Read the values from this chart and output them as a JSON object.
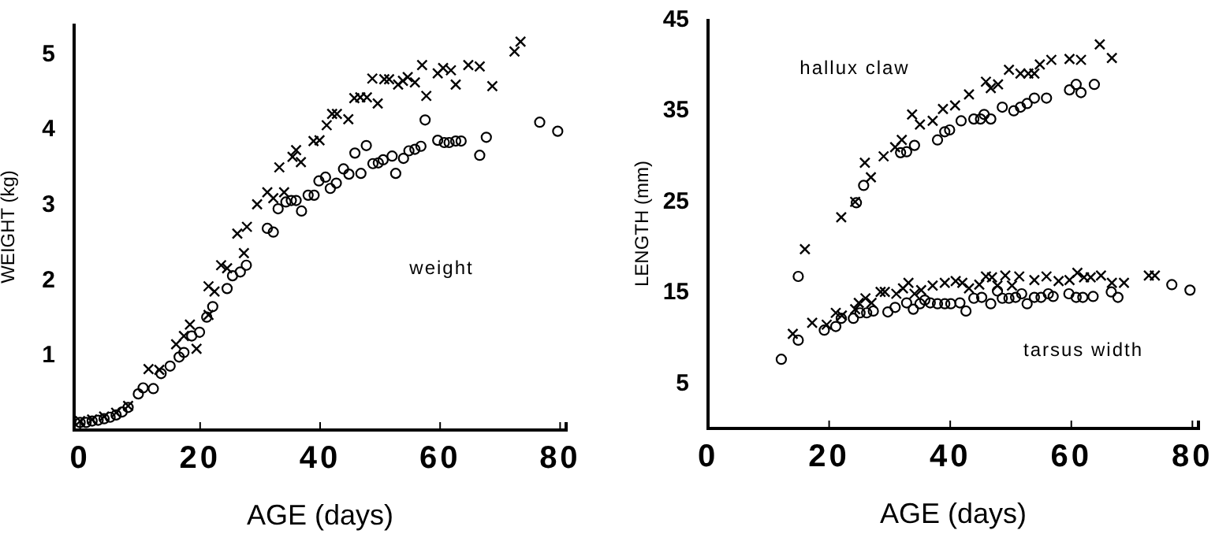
{
  "chart_data": [
    {
      "type": "scatter",
      "xlabel": "AGE (days)",
      "ylabel": "WEIGHT (kg)",
      "xlim": [
        -1,
        81
      ],
      "ylim": [
        0,
        5.4
      ],
      "xticks": [
        0,
        20,
        40,
        60,
        80
      ],
      "yticks": [
        1,
        2,
        3,
        4,
        5
      ],
      "annotations": [
        "weight"
      ],
      "series": [
        {
          "marker": "cross",
          "color": "#000000",
          "x": [
            0,
            2,
            4,
            6,
            8,
            11.4,
            13.2,
            16.0,
            17.3,
            18.3,
            19.4,
            21.4,
            21.4,
            22.4,
            23.5,
            24.5,
            26.2,
            27.3,
            27.8,
            29.5,
            31.2,
            32.2,
            34.0,
            33.2,
            35.4,
            36.0,
            36.8,
            38.9,
            39.9,
            41.1,
            42.0,
            42.8,
            44.7,
            45.7,
            46.7,
            47.8,
            49.6,
            48.7,
            50.7,
            51.5,
            53.0,
            53.8,
            54.6,
            55.8,
            57.0,
            57.7,
            59.6,
            60.5,
            61.8,
            62.6,
            64.7,
            66.6,
            68.7,
            72.4,
            73.4
          ],
          "values": [
            0.12,
            0.14,
            0.18,
            0.23,
            0.32,
            0.81,
            0.8,
            1.14,
            1.25,
            1.4,
            1.08,
            1.53,
            1.91,
            1.84,
            2.19,
            2.15,
            2.61,
            2.35,
            2.7,
            3.0,
            3.16,
            3.08,
            3.16,
            3.49,
            3.63,
            3.72,
            3.56,
            3.84,
            3.85,
            4.05,
            4.2,
            4.2,
            4.13,
            4.41,
            4.42,
            4.42,
            4.34,
            4.67,
            4.66,
            4.66,
            4.59,
            4.64,
            4.69,
            4.62,
            4.85,
            4.44,
            4.74,
            4.81,
            4.78,
            4.59,
            4.85,
            4.83,
            4.57,
            5.03,
            5.16
          ]
        },
        {
          "marker": "circle",
          "color": "#000000",
          "x": [
            0,
            1,
            2,
            3,
            4,
            5,
            6,
            7,
            8,
            9.7,
            10.5,
            12.2,
            13.5,
            15.0,
            16.5,
            17.3,
            18.6,
            19.9,
            21.1,
            22.1,
            24.5,
            25.4,
            26.7,
            27.7,
            31.2,
            32.2,
            33.0,
            34.3,
            35.2,
            36.0,
            36.9,
            38.0,
            39.0,
            39.8,
            40.9,
            41.7,
            42.7,
            43.9,
            44.8,
            45.8,
            46.8,
            47.7,
            48.8,
            49.7,
            50.5,
            52.0,
            52.6,
            53.9,
            54.8,
            55.8,
            56.8,
            57.5,
            59.6,
            60.7,
            61.5,
            62.6,
            63.5,
            66.6,
            67.7,
            76.6,
            79.6
          ],
          "values": [
            0.1,
            0.1,
            0.12,
            0.13,
            0.15,
            0.17,
            0.2,
            0.24,
            0.3,
            0.48,
            0.56,
            0.55,
            0.75,
            0.85,
            0.97,
            1.03,
            1.25,
            1.3,
            1.5,
            1.64,
            1.88,
            2.05,
            2.1,
            2.19,
            2.68,
            2.63,
            2.94,
            3.03,
            3.05,
            3.05,
            2.91,
            3.12,
            3.12,
            3.31,
            3.36,
            3.21,
            3.28,
            3.47,
            3.4,
            3.68,
            3.41,
            3.78,
            3.54,
            3.55,
            3.59,
            3.64,
            3.41,
            3.61,
            3.71,
            3.73,
            3.77,
            4.12,
            3.85,
            3.82,
            3.82,
            3.84,
            3.84,
            3.65,
            3.89,
            4.09,
            3.97
          ]
        }
      ]
    },
    {
      "type": "scatter",
      "xlabel": "AGE (days)",
      "ylabel": "LENGTH (mm)",
      "xlim": [
        0,
        81
      ],
      "ylim": [
        0,
        45
      ],
      "xticks": [
        0,
        20,
        40,
        60,
        80
      ],
      "yticks": [
        5,
        15,
        25,
        35,
        45
      ],
      "annotations": [
        "hallux claw",
        "tarsus width"
      ],
      "series": [
        {
          "marker": "cross",
          "color": "#000000",
          "x": [
            16.0,
            22.0,
            24.3,
            25.9,
            26.9,
            29.0,
            30.9,
            32.0,
            33.7,
            35.0,
            37.1,
            38.8,
            40.8,
            43.1,
            45.9,
            46.7,
            47.9,
            49.7,
            51.6,
            52.9,
            53.9,
            54.8,
            56.7,
            59.7,
            61.6,
            64.7,
            66.7,
            14.0,
            17.2,
            19.6,
            21.1,
            22.1,
            24.3,
            24.9,
            26.0,
            27.0,
            28.5,
            29.2,
            31.1,
            32.2,
            33.1,
            34.1,
            35.2,
            37.1,
            39.1,
            40.9,
            42.0,
            43.1,
            44.8,
            45.9,
            46.9,
            47.8,
            49.1,
            50.2,
            51.4,
            53.9,
            55.9,
            57.9,
            59.7,
            61.0,
            62.1,
            63.2,
            64.9,
            66.7,
            68.7,
            72.8,
            73.8
          ],
          "values": [
            19.7,
            23.2,
            24.9,
            29.2,
            27.6,
            29.9,
            30.9,
            31.7,
            34.5,
            33.4,
            33.8,
            35.1,
            35.5,
            36.7,
            38.1,
            37.4,
            37.8,
            39.4,
            39.0,
            39.0,
            39.0,
            40.0,
            40.5,
            40.6,
            40.5,
            42.2,
            40.7,
            10.4,
            11.6,
            11.4,
            12.7,
            12.4,
            13.1,
            13.8,
            14.3,
            13.8,
            15.0,
            15.0,
            14.8,
            15.4,
            16.0,
            14.8,
            15.2,
            15.7,
            16.0,
            16.2,
            16.0,
            15.4,
            15.8,
            16.7,
            16.6,
            15.7,
            16.8,
            15.7,
            16.7,
            16.3,
            16.7,
            16.2,
            16.3,
            17.1,
            16.6,
            16.6,
            16.8,
            16.0,
            16.0,
            16.8,
            16.8
          ]
        },
        {
          "marker": "circle",
          "color": "#000000",
          "x": [
            14.9,
            24.5,
            25.7,
            31.8,
            32.8,
            34.1,
            37.9,
            39.1,
            39.9,
            41.8,
            43.9,
            45.0,
            45.6,
            46.7,
            48.6,
            50.5,
            51.6,
            52.7,
            53.9,
            55.9,
            59.7,
            60.8,
            61.6,
            63.8,
            12.1,
            14.9,
            19.2,
            21.1,
            22.0,
            24.0,
            25.1,
            26.2,
            27.3,
            29.7,
            30.9,
            32.8,
            33.9,
            35.0,
            35.8,
            36.7,
            37.9,
            39.1,
            40.1,
            41.6,
            42.6,
            43.9,
            45.2,
            46.7,
            47.8,
            48.6,
            49.7,
            50.8,
            51.8,
            52.7,
            53.9,
            55.0,
            56.2,
            57.0,
            59.6,
            60.8,
            61.9,
            63.6,
            66.6,
            67.7,
            76.6,
            79.6
          ],
          "values": [
            16.7,
            24.8,
            26.7,
            30.3,
            30.4,
            31.1,
            31.7,
            32.6,
            32.8,
            33.8,
            34.0,
            34.0,
            34.5,
            34.0,
            35.3,
            34.9,
            35.3,
            35.7,
            36.3,
            36.3,
            37.2,
            37.8,
            36.9,
            37.8,
            7.6,
            9.7,
            10.8,
            11.2,
            12.1,
            12.1,
            12.7,
            12.7,
            12.9,
            12.8,
            13.3,
            13.8,
            13.1,
            13.7,
            14.1,
            13.8,
            13.7,
            13.7,
            13.7,
            13.8,
            12.9,
            14.3,
            14.4,
            13.7,
            15.1,
            14.3,
            14.3,
            14.4,
            14.8,
            13.7,
            14.4,
            14.4,
            14.8,
            14.5,
            14.8,
            14.4,
            14.4,
            14.5,
            15.0,
            14.4,
            15.8,
            15.2
          ]
        }
      ]
    }
  ]
}
